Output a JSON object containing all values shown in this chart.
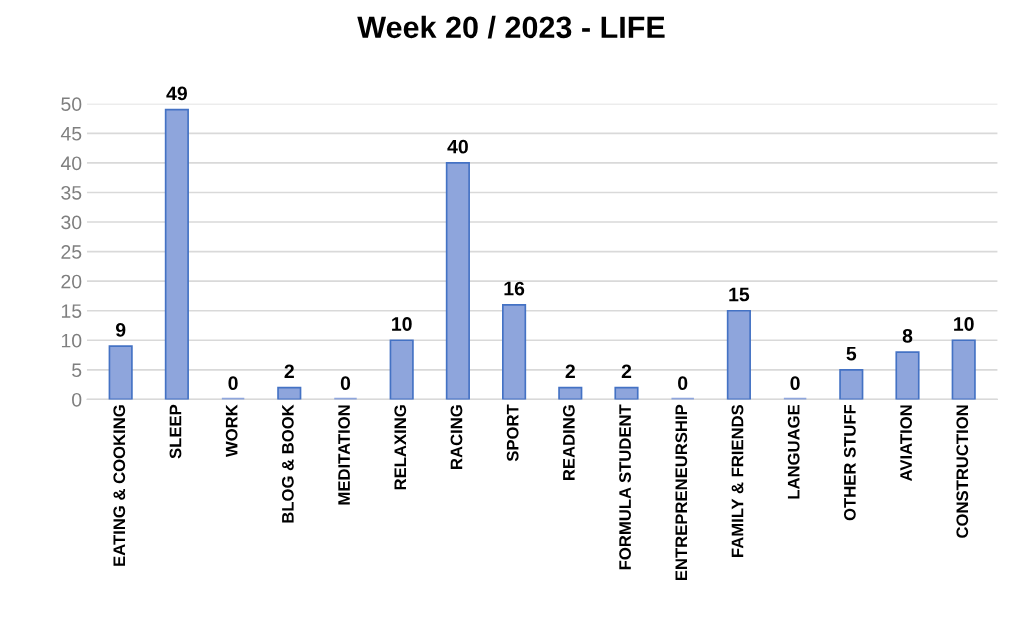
{
  "chart_data": {
    "type": "bar",
    "title": "Week 20 / 2023 - LIFE",
    "categories": [
      "EATING & COOKING",
      "SLEEP",
      "WORK",
      "BLOG & BOOK",
      "MEDITATION",
      "RELAXING",
      "RACING",
      "SPORT",
      "READING",
      "FORMULA STUDENT",
      "ENTREPRENEURSHIP",
      "FAMILY & FRIENDS",
      "LANGUAGE",
      "OTHER STUFF",
      "AVIATION",
      "CONSTRUCTION"
    ],
    "values": [
      9,
      49,
      0,
      2,
      0,
      10,
      40,
      16,
      2,
      2,
      0,
      15,
      0,
      5,
      8,
      10
    ],
    "color": "#8ea5dc",
    "ylim": [
      0,
      50
    ],
    "yticks": [
      0,
      5,
      10,
      15,
      20,
      25,
      30,
      35,
      40,
      45,
      50
    ],
    "grid": "y",
    "data_labels": true,
    "legend": false
  }
}
